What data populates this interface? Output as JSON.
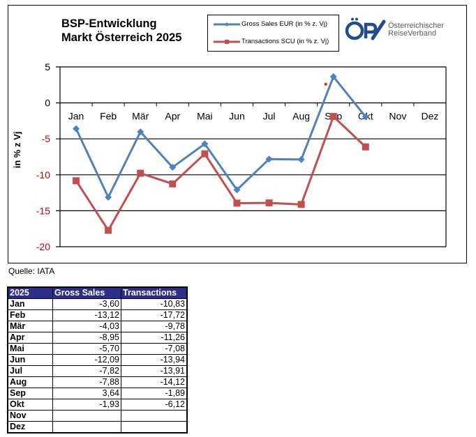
{
  "header": {
    "title_line1": "BSP-Entwicklung",
    "title_line2": "Markt Österreich 2025"
  },
  "logo": {
    "mark": "ÖRV",
    "line1": "Österreichischer",
    "line2": "ReiseVerband"
  },
  "source": "Quelle: IATA",
  "chart_data": {
    "type": "line",
    "title": "BSP-Entwicklung Markt Österreich 2025",
    "ylabel": "in % z Vj",
    "xlabel": "",
    "categories": [
      "Jan",
      "Feb",
      "Mär",
      "Apr",
      "Mai",
      "Jun",
      "Jul",
      "Aug",
      "Sep",
      "Okt",
      "Nov",
      "Dez"
    ],
    "ylim": [
      -20,
      5
    ],
    "yticks": [
      5,
      0,
      -5,
      -10,
      -15,
      -20
    ],
    "ytick_labels": [
      "5",
      "0",
      "-5",
      "-10",
      "-15",
      "-20"
    ],
    "grid": true,
    "legend_position": "top",
    "series": [
      {
        "name": "Gross Sales EUR (in % z. Vj)",
        "color": "#4f81bd",
        "marker": "diamond",
        "values": [
          -3.6,
          -13.12,
          -4.03,
          -8.95,
          -5.7,
          -12.09,
          -7.82,
          -7.88,
          3.64,
          -1.93,
          null,
          null
        ]
      },
      {
        "name": "Transactions SCU (in % z. Vj)",
        "color": "#c0504d",
        "marker": "square",
        "values": [
          -10.83,
          -17.72,
          -9.78,
          -11.26,
          -7.08,
          -13.94,
          -13.91,
          -14.12,
          -1.89,
          -6.12,
          null,
          null
        ]
      }
    ],
    "annotations": [
      {
        "type": "dot",
        "color": "#e02020",
        "category": "Sep",
        "y": 2.6
      }
    ]
  },
  "table": {
    "headers": [
      "2025",
      "Gross Sales",
      "Transactions"
    ],
    "rows": [
      [
        "Jan",
        "-3,60",
        "-10,83"
      ],
      [
        "Feb",
        "-13,12",
        "-17,72"
      ],
      [
        "Mär",
        "-4,03",
        "-9,78"
      ],
      [
        "Apr",
        "-8,95",
        "-11,26"
      ],
      [
        "Mai",
        "-5,70",
        "-7,08"
      ],
      [
        "Jun",
        "-12,09",
        "-13,94"
      ],
      [
        "Jul",
        "-7,82",
        "-13,91"
      ],
      [
        "Aug",
        "-7,88",
        "-14,12"
      ],
      [
        "Sep",
        "3,64",
        "-1,89"
      ],
      [
        "Okt",
        "-1,93",
        "-6,12"
      ],
      [
        "Nov",
        "",
        ""
      ],
      [
        "Dez",
        "",
        ""
      ]
    ]
  },
  "colors": {
    "gross_sales": "#4f81bd",
    "transactions": "#c0504d",
    "negative_tick": "#cc0000",
    "table_header_bg": "#2e2e8a",
    "logo_blue": "#1f4e8c"
  }
}
